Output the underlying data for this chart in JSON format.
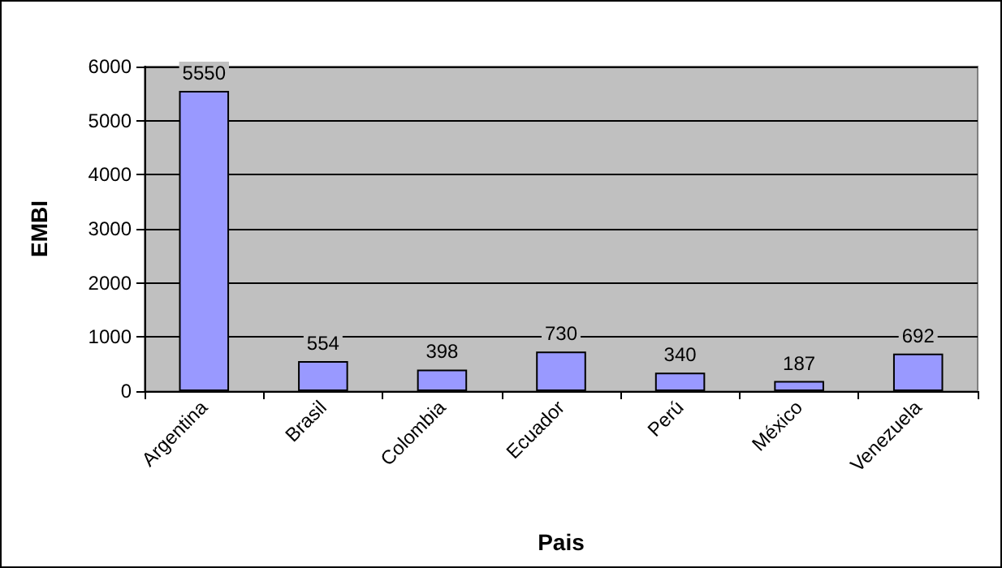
{
  "chart_data": {
    "type": "bar",
    "xlabel": "Pais",
    "ylabel": "EMBI",
    "categories": [
      "Argentina",
      "Brasil",
      "Colombia",
      "Ecuador",
      "Perú",
      "México",
      "Venezuela"
    ],
    "values": [
      5550,
      554,
      398,
      730,
      340,
      187,
      692
    ],
    "color": "#9999ff",
    "ylim": [
      0,
      6000
    ],
    "yticks": [
      0,
      1000,
      2000,
      3000,
      4000,
      5000,
      6000
    ],
    "grid": "y",
    "data_labels": true
  }
}
